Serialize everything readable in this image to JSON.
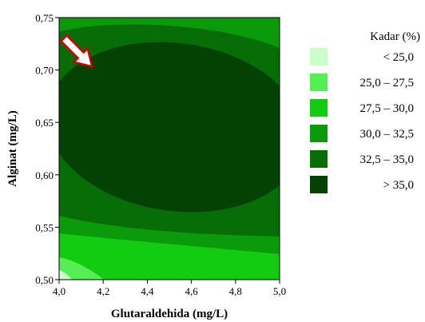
{
  "chart_data": {
    "type": "contour",
    "xlabel": "Glutaraldehida (mg/L)",
    "ylabel": "Alginat (mg/L)",
    "xlim": [
      4.0,
      5.0
    ],
    "ylim": [
      0.5,
      0.75
    ],
    "x_ticks": [
      "4,0",
      "4,2",
      "4,4",
      "4,6",
      "4,8",
      "5,0"
    ],
    "y_ticks": [
      "0,50",
      "0,55",
      "0,60",
      "0,65",
      "0,70",
      "0,75"
    ],
    "x_tick_values": [
      4.0,
      4.2,
      4.4,
      4.6,
      4.8,
      5.0
    ],
    "y_tick_values": [
      0.5,
      0.55,
      0.6,
      0.65,
      0.7,
      0.75
    ],
    "legend": {
      "title": "Kadar (%)",
      "placement": "right",
      "entries": [
        {
          "label": "< 25,0",
          "color": "#ccffcc"
        },
        {
          "label": "25,0 – 27,5",
          "color": "#55ee55"
        },
        {
          "label": "27,5 – 30,0",
          "color": "#11cc11"
        },
        {
          "label": "30,0 – 32,5",
          "color": "#0a9a0a"
        },
        {
          "label": "32,5 – 35,0",
          "color": "#076e07"
        },
        {
          "label": "> 35,0",
          "color": "#044204"
        }
      ]
    },
    "annotation": {
      "type": "arrow",
      "x": 4.05,
      "y": 0.712,
      "to_x": 4.19,
      "to_y": 0.695
    }
  }
}
